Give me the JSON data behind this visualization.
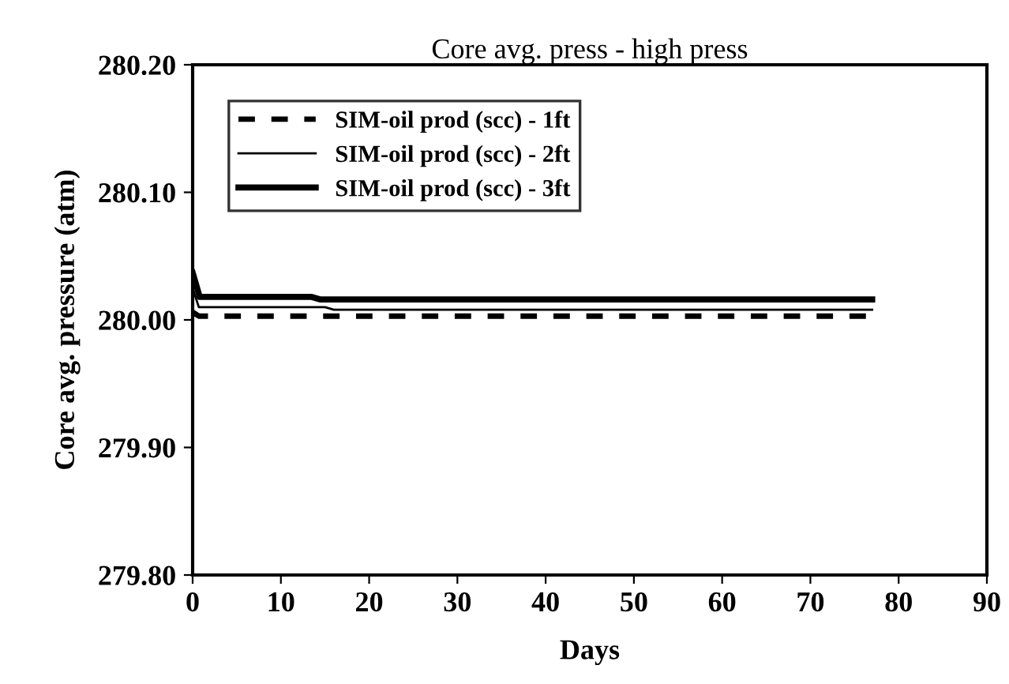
{
  "chart_data": {
    "type": "line",
    "title": "Core avg. press - high press",
    "xlabel": "Days",
    "ylabel": "Core avg. pressure (atm)",
    "xlim": [
      0,
      90
    ],
    "xticks": [
      0,
      10,
      20,
      30,
      40,
      50,
      60,
      70,
      80,
      90
    ],
    "ylim": [
      279.8,
      280.2
    ],
    "yticks": [
      {
        "value": 279.8,
        "label": "279.80"
      },
      {
        "value": 279.9,
        "label": "279.90"
      },
      {
        "value": 280.0,
        "label": "280.00"
      },
      {
        "value": 280.1,
        "label": "280.10"
      },
      {
        "value": 280.2,
        "label": "280.20"
      }
    ],
    "grid": false,
    "legend": "top left",
    "series": [
      {
        "name": "SIM-oil prod (scc) - 1ft",
        "color": "#000000",
        "line_style": "dashed",
        "x": [
          0,
          0.7,
          77
        ],
        "values": [
          280.006,
          280.003,
          280.003
        ]
      },
      {
        "name": "SIM-oil prod (scc) - 2ft",
        "color": "#000000",
        "line_style": "solid",
        "x": [
          0,
          0.7,
          15,
          16,
          77
        ],
        "values": [
          280.025,
          280.01,
          280.01,
          280.008,
          280.008
        ]
      },
      {
        "name": "SIM-oil prod (scc) - 3ft",
        "color": "#000000",
        "line_style": "solid",
        "x": [
          0,
          0.8,
          13.5,
          14.5,
          77
        ],
        "values": [
          280.037,
          280.018,
          280.018,
          280.016,
          280.016
        ]
      }
    ]
  }
}
